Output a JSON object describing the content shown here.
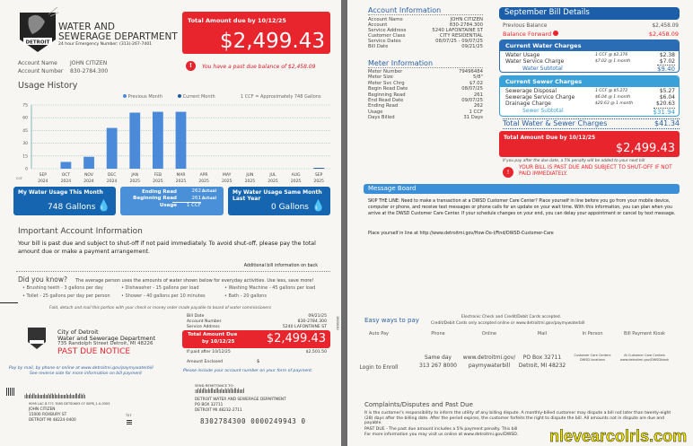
{
  "header": {
    "dept_line1": "WATER AND",
    "dept_line2": "SEWERAGE DEPARTMENT",
    "emergency": "24 hour Emergency Number: (313)-267-7401",
    "logo_text": "CITY OF DETROIT",
    "account_name_label": "Account Name",
    "account_name": "JOHN CITIZEN",
    "account_number_label": "Account Number",
    "account_number": "830-2784.300",
    "due_label": "Total Amount due by 10/12/25",
    "due_amount": "$2,499.43",
    "past_due_msg": "You have a past due balance of $2,458.09"
  },
  "usage": {
    "title": "Usage History",
    "legend_prev": "Previous Month",
    "legend_curr": "Current Month",
    "note": "1 CCF = Approximately 748 Gallons",
    "this_month_label": "My Water Usage This Month",
    "this_month_value": "748 Gallons",
    "ending_read_label": "Ending Read",
    "ending_read": "262",
    "ending_type": "Actual",
    "beginning_read_label": "Beginning Read",
    "beginning_read": "261",
    "beginning_type": "Actual",
    "usage_label": "Usage",
    "usage_value": "1 CCF",
    "last_year_label": "My Water Usage Same Month Last Year",
    "last_year_value": "0 Gallons"
  },
  "chart_data": {
    "type": "bar",
    "ylabel": "CCF",
    "ylim": [
      0,
      75
    ],
    "yticks": [
      0,
      15,
      30,
      45,
      60,
      75
    ],
    "grid": true,
    "categories": [
      "SEP 2024",
      "OCT 2024",
      "NOV 2024",
      "DEC 2024",
      "JAN 2025",
      "FEB 2025",
      "MAR 2025",
      "APR 2025",
      "MAY 2025",
      "JUN 2025",
      "JUL 2025",
      "AUG 2025",
      "SEP 2025"
    ],
    "values": [
      0,
      8,
      14,
      48,
      66,
      67,
      67,
      0,
      0,
      0,
      0,
      0,
      1
    ],
    "series_colors": {
      "previous": "#4a8ad8",
      "current": "#1c5c9e"
    }
  },
  "important": {
    "title": "Important Account Information",
    "text": "Your bill is past due and subject to shut-off if not paid immediately.  To avoid shut-off, please pay the total amount due or make a payment arrangement.",
    "back_note": "Additional bill information on back"
  },
  "didyouknow": {
    "title": "Did you know?",
    "intro": "The average person uses the amounts of water shown below for everyday activities.  Use less, save more!",
    "items": [
      "• Brushing teeth - 3 gallons per day",
      "• Dishwasher - 15 gallons per load",
      "• Washing Machine - 45 gallons per load",
      "• Toilet - 25 gallons per day per person",
      "• Shower - 40 gallons per 10 minutes",
      "• Bath - 20 gallons"
    ],
    "fold_note": "Fold, detach and mail this portion with your check or money order made payable to board of water commissioners"
  },
  "stub": {
    "city": "City of Detroit",
    "dept": "Water and Sewerage Department",
    "address": "735 Randolph Street Detroit, MI 48226",
    "notice": "PAST DUE NOTICE",
    "bill_date_label": "Bill Date",
    "bill_date": "09/21/25",
    "acct_label": "Account Number",
    "acct": "830-2784.300",
    "svc_label": "Service Address",
    "svc": "5240 LAFONTAINE ST",
    "due_label1": "Total Amount Due",
    "due_label2": "by 10/12/25",
    "due_amount": "$2,499.43",
    "late_label": "If paid after 10/12/25",
    "late_amount": "$2,501.50",
    "enclosed_label": "Amount Enclosed",
    "enclosed_symbol": "$",
    "pay_note1": "Pay by mail, by phone or online at www.detroitmi.gov/paymywaterbill",
    "pay_note2": "See reverse side for more information on bill payment",
    "include_note": "Please include your account number on your form of payment.",
    "side_code": "1803030"
  },
  "mailing": {
    "barcode": "ılıılıllıılıııılıılıllılıılııııılıılıııllıllılı",
    "line1": "9095 LAC 8.771  7085 DETS0603 07 S0P8_1-0-0303",
    "name": "JOHN CITIZEN",
    "street": "15000 ROXBURY ST",
    "city": "DETROIT  MI  48224-0400",
    "tray": "T27",
    "remit_label": "SEND REMITTANCE TO:",
    "remit_barcode": "ıılılıllıılıllııllıılıılılıllıllılıııl",
    "remit_name": "DETROIT WATER AND SEWERAGE DEPARTMENT",
    "remit_po": "PO BOX 32711",
    "remit_city": "DETROIT  MI  48232-2711",
    "scanline": "8302784300 0000249943 0"
  },
  "account_info": {
    "title": "Account Information",
    "rows": [
      [
        "Account Name",
        "JOHN CITIZEN"
      ],
      [
        "Account",
        "830-2784.300"
      ],
      [
        "Service Address",
        "5240 LAFONTAINE ST"
      ],
      [
        "Customer Class",
        "CITY RESIDENTIAL"
      ],
      [
        "Service Dates",
        "08/07/25 - 09/07/25"
      ],
      [
        "Bill Date",
        "09/21/25"
      ]
    ]
  },
  "meter_info": {
    "title": "Meter Information",
    "rows": [
      [
        "Meter Number",
        "79496484"
      ],
      [
        "Meter Size",
        "5/8\""
      ],
      [
        "Meter Svc Chrg",
        "$7.02"
      ],
      [
        "Begin Read Date",
        "08/07/25"
      ],
      [
        "Beginning Read",
        "261"
      ],
      [
        "End Read Date",
        "09/07/25"
      ],
      [
        "Ending Read",
        "262"
      ],
      [
        "Usage",
        "1 CCF"
      ],
      [
        "Days Billed",
        "31 Days"
      ]
    ]
  },
  "bill": {
    "title": "September Bill Details",
    "prev_label": "Previous Balance",
    "prev": "$2,458.09",
    "fwd_label": "Balance Forward",
    "fwd": "$2,458.09",
    "water_title": "Current Water Charges",
    "water_rows": [
      [
        "Water Usage",
        "1 CCF @ $2.376",
        "$2.38"
      ],
      [
        "Water Service Charge",
        "$7.02 @ 1 month",
        "$7.02"
      ]
    ],
    "water_sub_label": "Water Subtotal",
    "water_sub": "$9.40",
    "sewer_title": "Current Sewer Charges",
    "sewer_rows": [
      [
        "Sewerage Disposal",
        "1 CCF @ $5.272",
        "$5.27"
      ],
      [
        "Sewerage Service Charge",
        "$6.04 @ 1 month",
        "$6.04"
      ],
      [
        "Drainage Charge",
        "$20.63 @ 1 month",
        "$20.63"
      ]
    ],
    "sewer_sub_label": "Sewer Subtotal",
    "sewer_sub": "$31.94",
    "total_ws_label": "Total Water & Sewer Charges",
    "total_ws": "$41.34",
    "due_label": "Total Amount Due by 10/12/25",
    "due_amount": "$2,499.43",
    "penalty_note": "If you pay after the due date, a 5% penalty will be added to your next bill",
    "warning": "YOUR BILL IS PAST DUE AND SUBJECT TO SHUT-OFF IF NOT PAID IMMEDIATELY."
  },
  "message_board": {
    "title": "Message Board",
    "text": "SKIP THE LINE: Need to make a transaction at a DWSD Customer Care Center? Place yourself in line before you go from your mobile device, computer or phone, and receive text messages or phone calls for an update on your wait time. With this information, you can plan when you arrive at the DWSD Customer Care Center. If your schedule changes on your end, you can delay your appointment or cancel by text message.",
    "link_text": "Place yourself in line at http://www.detroitmi.gov/How-Do-I/Find/DWSD-Customer-Care"
  },
  "pay": {
    "title": "Easy ways to pay",
    "note1": "Electronic Check and Credit/Debit Cards accepted.",
    "note2": "Credit/Debit Cards only accepted online  or  www.detroitmi.gov/paymywaterbill",
    "methods": [
      {
        "label": "Auto Pay",
        "l1": "Login to Enroll",
        "l2": ""
      },
      {
        "label": "Phone",
        "l1": "Same day",
        "l2": "313 267 8000"
      },
      {
        "label": "Online",
        "l1": "www.detroitmi.gov/",
        "l2": "paymywaterbill"
      },
      {
        "label": "Mail",
        "l1": "PO Box 32711",
        "l2": "Detroit, MI 48232"
      },
      {
        "label": "In Person",
        "l1": "Customer Care Centers",
        "l2": "DWSD locations"
      },
      {
        "label": "Bill Payment Kiosk",
        "l1": "At Customer Care Centers",
        "l2": "www.detroitmi.gov/DWSDkiosk"
      }
    ]
  },
  "complaints": {
    "title": "Complaints/Disputes  and  Past  Due",
    "text": "It is the customer's responsibility to inform the utility of any billing dispute.  A monthly-billed customer may dispute a bill not later than twenty-eight (28) days after the billing date.  After the period expires, the customer forfeits the right to dispute the bill.  All amounts not in dispute are due and payable.",
    "past_due": "PAST DUE - The past due amount includes a 5% payment penalty.  This bill",
    "more": "For more information you may visit us online at www.detroitmi.gov/DWSD."
  },
  "watermark": "nlevearcolrls.com",
  "colors": {
    "red": "#e8242c",
    "dark_blue": "#1c5c9e",
    "blue": "#3a8fd8",
    "light_blue": "#4a9fe0"
  }
}
